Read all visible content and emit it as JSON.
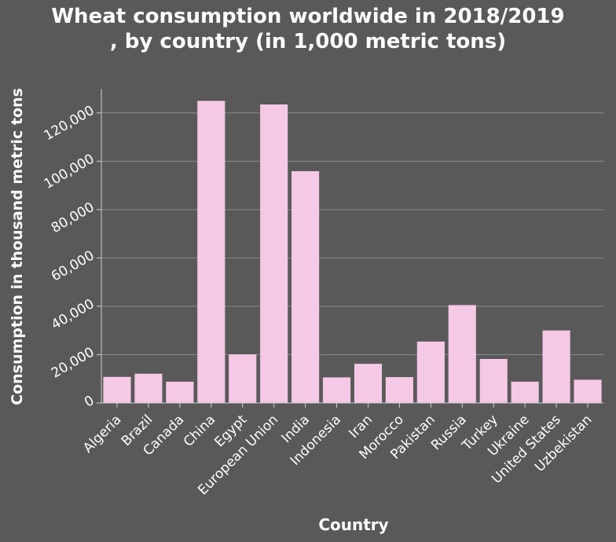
{
  "chart_data": {
    "type": "bar",
    "title_lines": [
      "Wheat consumption worldwide in 2018/2019",
      ", by country (in 1,000 metric tons)"
    ],
    "xlabel": "Country",
    "ylabel": "Consumption in thousand metric tons",
    "categories": [
      "Algeria",
      "Brazil",
      "Canada",
      "China",
      "Egypt",
      "European Union",
      "India",
      "Indonesia",
      "Iran",
      "Morocco",
      "Pakistan",
      "Russia",
      "Turkey",
      "Ukraine",
      "United States",
      "Uzbekistan"
    ],
    "values": [
      10800,
      12100,
      8800,
      125000,
      20100,
      123500,
      95900,
      10600,
      16200,
      10700,
      25400,
      40500,
      18200,
      8800,
      30000,
      9600
    ],
    "yticks": [
      0,
      20000,
      40000,
      60000,
      80000,
      100000,
      120000
    ],
    "ytick_labels": [
      "0",
      "20,000",
      "40,000",
      "60,000",
      "80,000",
      "100,000",
      "120,000"
    ],
    "ylim": [
      0,
      130000
    ],
    "grid": true,
    "colors": {
      "bar": "#f5c8e6",
      "background": "#595959",
      "grid": "#8a8a8a",
      "axis": "#cfcfcf",
      "text": "#ffffff"
    }
  }
}
